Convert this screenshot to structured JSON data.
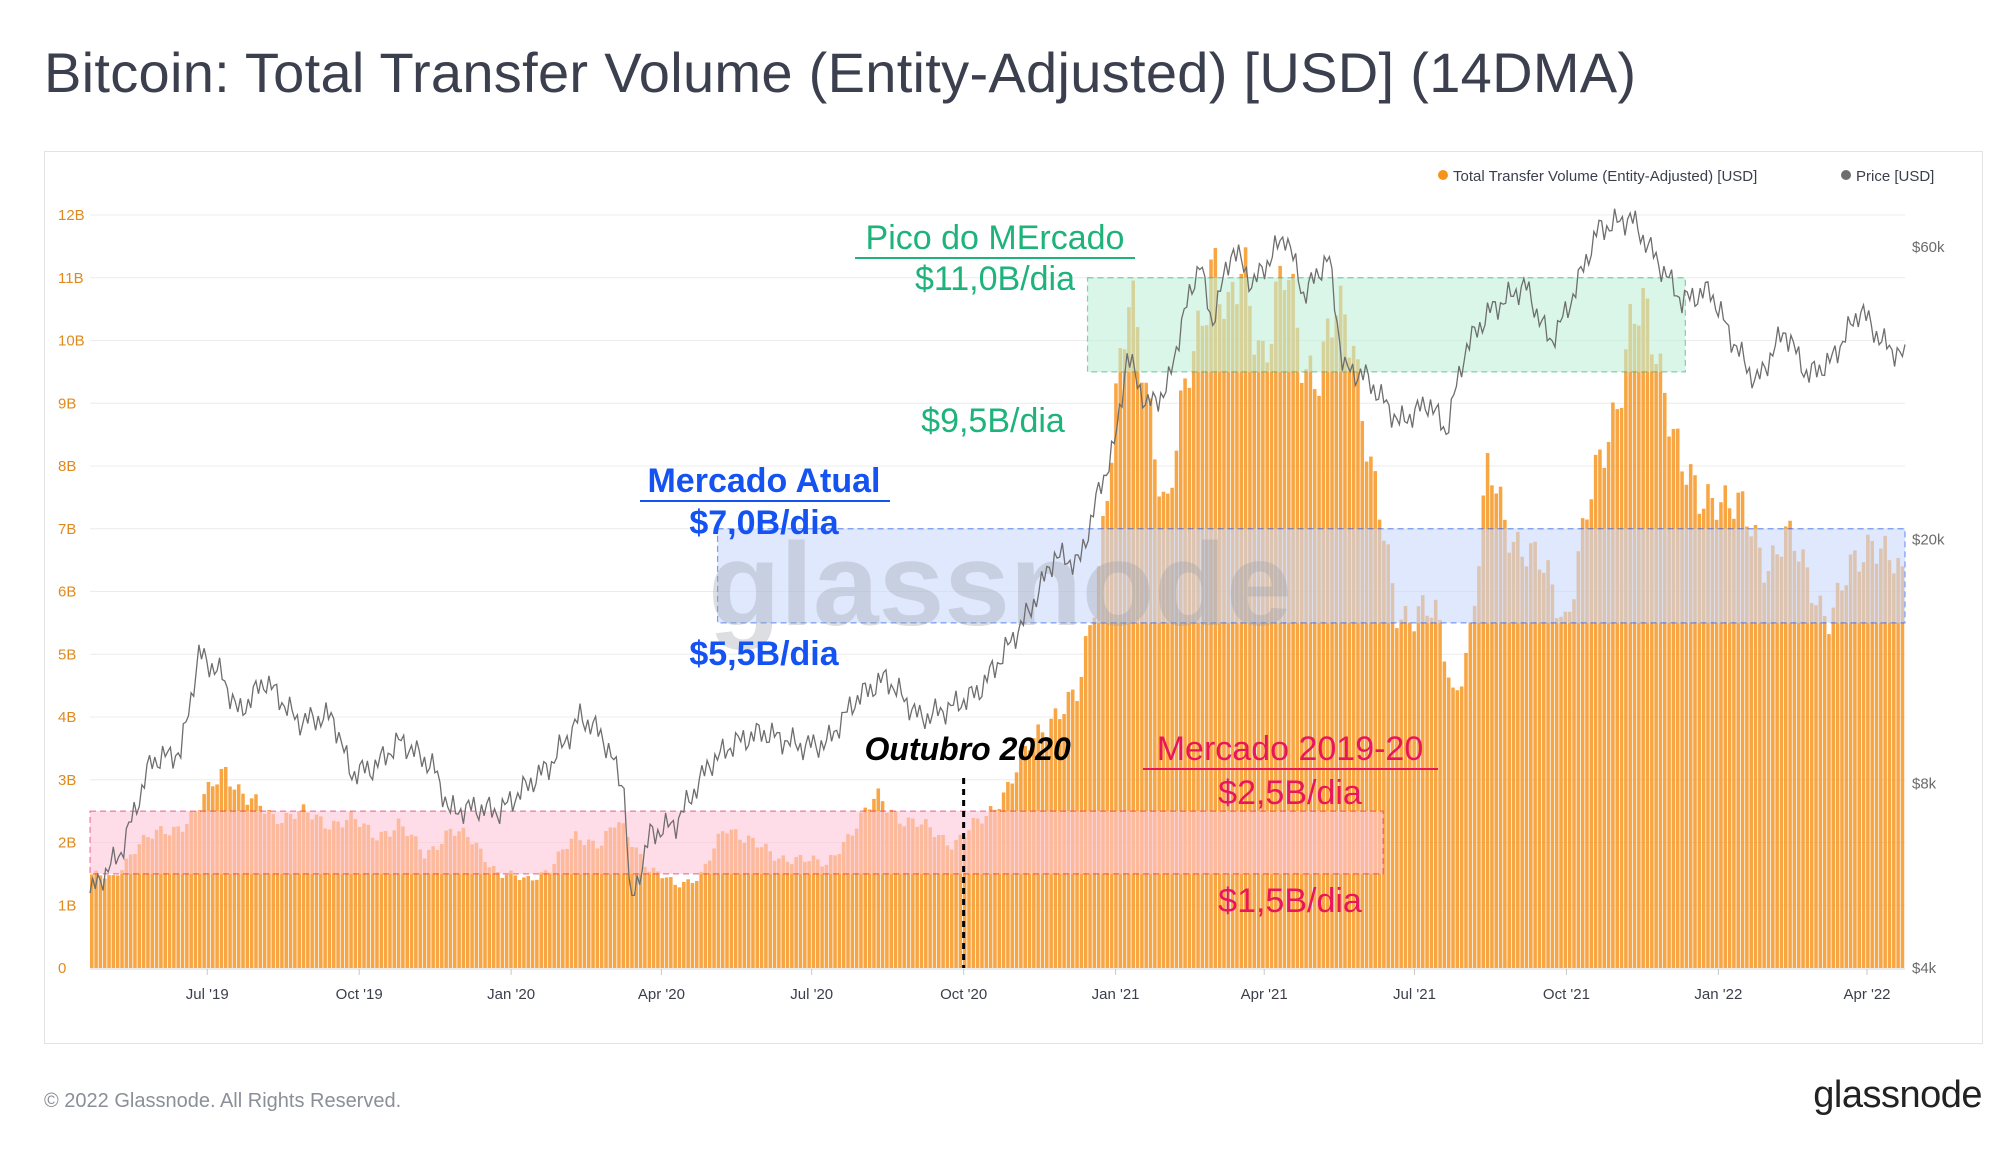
{
  "title": "Bitcoin: Total Transfer Volume (Entity-Adjusted) [USD] (14DMA)",
  "footer": {
    "copyright": "© 2022 Glassnode. All Rights Reserved.",
    "logo": "glassnode"
  },
  "watermark": "glassnode",
  "colors": {
    "volume": "#f7931a",
    "price": "#6e6e6e",
    "peak": "#1db37a",
    "current": "#1452f2",
    "prev": "#e8175d"
  },
  "chart_data": {
    "type": "bar",
    "x_range": [
      "2019-04-21",
      "2022-04-24"
    ],
    "x_ticks": [
      "Jul '19",
      "Oct '19",
      "Jan '20",
      "Apr '20",
      "Jul '20",
      "Oct '20",
      "Jan '21",
      "Apr '21",
      "Jul '21",
      "Oct '21",
      "Jan '22",
      "Apr '22"
    ],
    "x_tick_dates": [
      "2019-07-01",
      "2019-10-01",
      "2020-01-01",
      "2020-04-01",
      "2020-07-01",
      "2020-10-01",
      "2021-01-01",
      "2021-04-01",
      "2021-07-01",
      "2021-10-01",
      "2022-01-01",
      "2022-04-01"
    ],
    "y_left_ticks": [
      "0",
      "1B",
      "2B",
      "3B",
      "4B",
      "5B",
      "6B",
      "7B",
      "8B",
      "9B",
      "10B",
      "11B",
      "12B"
    ],
    "y_left_range": [
      0,
      12
    ],
    "y_right_ticks": [
      "$4k",
      "$8k",
      "$20k",
      "$60k"
    ],
    "y_right_values": [
      4000,
      8000,
      20000,
      60000
    ],
    "y_right_scale": "log",
    "legend": {
      "position": "top-right",
      "items": [
        {
          "label": "Total Transfer Volume (Entity-Adjusted) [USD]",
          "color": "#f7931a"
        },
        {
          "label": "Price [USD]",
          "color": "#6e6e6e"
        }
      ]
    },
    "series": [
      {
        "name": "Total Transfer Volume (Entity-Adjusted) [USD]",
        "unit": "B USD",
        "points": [
          [
            "2019-04-21",
            1.5
          ],
          [
            "2019-05-05",
            1.4
          ],
          [
            "2019-05-20",
            2.0
          ],
          [
            "2019-06-10",
            2.2
          ],
          [
            "2019-06-25",
            2.5
          ],
          [
            "2019-07-05",
            2.9
          ],
          [
            "2019-07-12",
            3.2
          ],
          [
            "2019-07-25",
            2.7
          ],
          [
            "2019-08-10",
            2.4
          ],
          [
            "2019-08-25",
            2.5
          ],
          [
            "2019-09-10",
            2.3
          ],
          [
            "2019-09-25",
            2.4
          ],
          [
            "2019-10-10",
            2.1
          ],
          [
            "2019-10-25",
            2.3
          ],
          [
            "2019-11-10",
            1.8
          ],
          [
            "2019-11-25",
            2.2
          ],
          [
            "2019-12-10",
            2.0
          ],
          [
            "2019-12-25",
            1.5
          ],
          [
            "2020-01-10",
            1.4
          ],
          [
            "2020-01-25",
            1.6
          ],
          [
            "2020-02-10",
            2.1
          ],
          [
            "2020-02-25",
            2.0
          ],
          [
            "2020-03-05",
            2.3
          ],
          [
            "2020-03-15",
            2.0
          ],
          [
            "2020-03-25",
            1.6
          ],
          [
            "2020-04-10",
            1.3
          ],
          [
            "2020-04-25",
            1.5
          ],
          [
            "2020-05-10",
            2.2
          ],
          [
            "2020-05-25",
            2.1
          ],
          [
            "2020-06-10",
            1.7
          ],
          [
            "2020-06-25",
            1.8
          ],
          [
            "2020-07-10",
            1.6
          ],
          [
            "2020-07-25",
            2.2
          ],
          [
            "2020-08-10",
            2.7
          ],
          [
            "2020-08-25",
            2.4
          ],
          [
            "2020-09-10",
            2.2
          ],
          [
            "2020-09-25",
            2.0
          ],
          [
            "2020-10-05",
            2.2
          ],
          [
            "2020-10-15",
            2.4
          ],
          [
            "2020-10-25",
            2.8
          ],
          [
            "2020-11-10",
            3.5
          ],
          [
            "2020-11-25",
            4.1
          ],
          [
            "2020-12-10",
            4.3
          ],
          [
            "2020-12-20",
            6.0
          ],
          [
            "2021-01-01",
            9.0
          ],
          [
            "2021-01-10",
            10.5
          ],
          [
            "2021-01-20",
            9.4
          ],
          [
            "2021-02-01",
            7.2
          ],
          [
            "2021-02-15",
            9.5
          ],
          [
            "2021-03-01",
            11.5
          ],
          [
            "2021-03-10",
            10.1
          ],
          [
            "2021-03-20",
            11.2
          ],
          [
            "2021-04-01",
            9.8
          ],
          [
            "2021-04-15",
            11.0
          ],
          [
            "2021-04-25",
            9.8
          ],
          [
            "2021-05-05",
            9.5
          ],
          [
            "2021-05-15",
            10.3
          ],
          [
            "2021-05-25",
            10.2
          ],
          [
            "2021-06-05",
            8.0
          ],
          [
            "2021-06-20",
            5.6
          ],
          [
            "2021-07-05",
            5.8
          ],
          [
            "2021-07-15",
            5.5
          ],
          [
            "2021-07-25",
            4.3
          ],
          [
            "2021-08-05",
            5.5
          ],
          [
            "2021-08-15",
            7.9
          ],
          [
            "2021-08-25",
            7.2
          ],
          [
            "2021-09-10",
            6.5
          ],
          [
            "2021-09-20",
            6.2
          ],
          [
            "2021-10-01",
            5.6
          ],
          [
            "2021-10-15",
            7.3
          ],
          [
            "2021-11-01",
            9.2
          ],
          [
            "2021-11-10",
            10.3
          ],
          [
            "2021-11-20",
            10.2
          ],
          [
            "2021-12-01",
            9.3
          ],
          [
            "2021-12-10",
            8.0
          ],
          [
            "2021-12-20",
            7.3
          ],
          [
            "2022-01-01",
            7.7
          ],
          [
            "2022-01-15",
            7.2
          ],
          [
            "2022-01-30",
            6.5
          ],
          [
            "2022-02-10",
            6.9
          ],
          [
            "2022-02-25",
            6.2
          ],
          [
            "2022-03-10",
            5.6
          ],
          [
            "2022-03-25",
            6.4
          ],
          [
            "2022-04-05",
            7.0
          ],
          [
            "2022-04-24",
            6.0
          ]
        ]
      },
      {
        "name": "Price [USD]",
        "unit": "USD",
        "points": [
          [
            "2019-04-21",
            5300
          ],
          [
            "2019-05-10",
            6200
          ],
          [
            "2019-05-28",
            8700
          ],
          [
            "2019-06-15",
            9000
          ],
          [
            "2019-06-26",
            13000
          ],
          [
            "2019-07-10",
            12000
          ],
          [
            "2019-07-20",
            10400
          ],
          [
            "2019-08-05",
            11800
          ],
          [
            "2019-08-25",
            10100
          ],
          [
            "2019-09-15",
            10300
          ],
          [
            "2019-09-26",
            8300
          ],
          [
            "2019-10-10",
            8500
          ],
          [
            "2019-10-26",
            9400
          ],
          [
            "2019-11-15",
            8500
          ],
          [
            "2019-11-25",
            7200
          ],
          [
            "2019-12-10",
            7300
          ],
          [
            "2019-12-25",
            7200
          ],
          [
            "2020-01-10",
            7900
          ],
          [
            "2020-01-25",
            8600
          ],
          [
            "2020-02-12",
            10300
          ],
          [
            "2020-02-25",
            9600
          ],
          [
            "2020-03-10",
            7800
          ],
          [
            "2020-03-13",
            5000
          ],
          [
            "2020-03-25",
            6600
          ],
          [
            "2020-04-10",
            6900
          ],
          [
            "2020-04-30",
            8600
          ],
          [
            "2020-05-15",
            9300
          ],
          [
            "2020-06-01",
            9700
          ],
          [
            "2020-06-25",
            9200
          ],
          [
            "2020-07-10",
            9300
          ],
          [
            "2020-07-28",
            11000
          ],
          [
            "2020-08-15",
            11900
          ],
          [
            "2020-09-05",
            10200
          ],
          [
            "2020-09-25",
            10700
          ],
          [
            "2020-10-10",
            11300
          ],
          [
            "2020-10-25",
            13000
          ],
          [
            "2020-11-10",
            15300
          ],
          [
            "2020-11-25",
            18800
          ],
          [
            "2020-12-10",
            18300
          ],
          [
            "2020-12-20",
            23000
          ],
          [
            "2021-01-01",
            29000
          ],
          [
            "2021-01-08",
            40000
          ],
          [
            "2021-01-20",
            33000
          ],
          [
            "2021-02-01",
            35000
          ],
          [
            "2021-02-10",
            45000
          ],
          [
            "2021-02-21",
            57000
          ],
          [
            "2021-02-28",
            45000
          ],
          [
            "2021-03-13",
            60000
          ],
          [
            "2021-03-25",
            52000
          ],
          [
            "2021-04-14",
            63000
          ],
          [
            "2021-04-25",
            50000
          ],
          [
            "2021-05-10",
            58000
          ],
          [
            "2021-05-19",
            38000
          ],
          [
            "2021-06-01",
            37000
          ],
          [
            "2021-06-22",
            31000
          ],
          [
            "2021-07-10",
            33500
          ],
          [
            "2021-07-20",
            30000
          ],
          [
            "2021-08-01",
            41000
          ],
          [
            "2021-08-15",
            47000
          ],
          [
            "2021-09-06",
            52000
          ],
          [
            "2021-09-21",
            42000
          ],
          [
            "2021-10-01",
            47000
          ],
          [
            "2021-10-20",
            64000
          ],
          [
            "2021-11-09",
            67000
          ],
          [
            "2021-11-25",
            57000
          ],
          [
            "2021-12-10",
            49000
          ],
          [
            "2021-12-27",
            51000
          ],
          [
            "2022-01-10",
            42000
          ],
          [
            "2022-01-24",
            36000
          ],
          [
            "2022-02-10",
            44000
          ],
          [
            "2022-02-24",
            37000
          ],
          [
            "2022-03-10",
            39000
          ],
          [
            "2022-03-28",
            47500
          ],
          [
            "2022-04-10",
            42000
          ],
          [
            "2022-04-24",
            39500
          ]
        ]
      }
    ],
    "bands": [
      {
        "label_top": "Pico do MErcado",
        "value_top": "$11,0B/dia",
        "value_bottom": "$9,5B/dia",
        "y_low": 9.5,
        "y_high": 11.0,
        "x_start": "2020-12-15",
        "x_end": "2021-12-12",
        "color": "#1db37a"
      },
      {
        "label_top": "Mercado Atual",
        "value_top": "$7,0B/dia",
        "value_bottom": "$5,5B/dia",
        "y_low": 5.5,
        "y_high": 7.0,
        "x_start": "2020-05-05",
        "x_end": "2022-04-24",
        "color": "#1452f2"
      },
      {
        "label_top": "Mercado 2019-20",
        "value_top": "$2,5B/dia",
        "value_bottom": "$1,5B/dia",
        "y_low": 1.5,
        "y_high": 2.5,
        "x_start": "2019-04-21",
        "x_end": "2021-06-12",
        "color": "#e8175d"
      }
    ],
    "marker": {
      "label": "Outubro 2020",
      "x": "2020-10-01"
    }
  }
}
